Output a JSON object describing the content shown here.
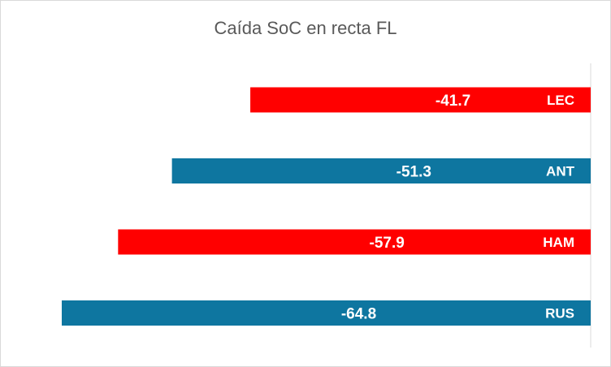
{
  "chart_data": {
    "type": "bar",
    "orientation": "horizontal",
    "title": "Caída SoC en recta FL",
    "categories": [
      "LEC",
      "ANT",
      "HAM",
      "RUS"
    ],
    "values": [
      -41.7,
      -51.3,
      -57.9,
      -64.8
    ],
    "value_labels": [
      "-41.7",
      "-51.3",
      "-57.9",
      "-64.8"
    ],
    "colors": [
      "#ff0000",
      "#0e76a0",
      "#ff0000",
      "#0e76a0"
    ],
    "grid": false,
    "legend": "none"
  }
}
